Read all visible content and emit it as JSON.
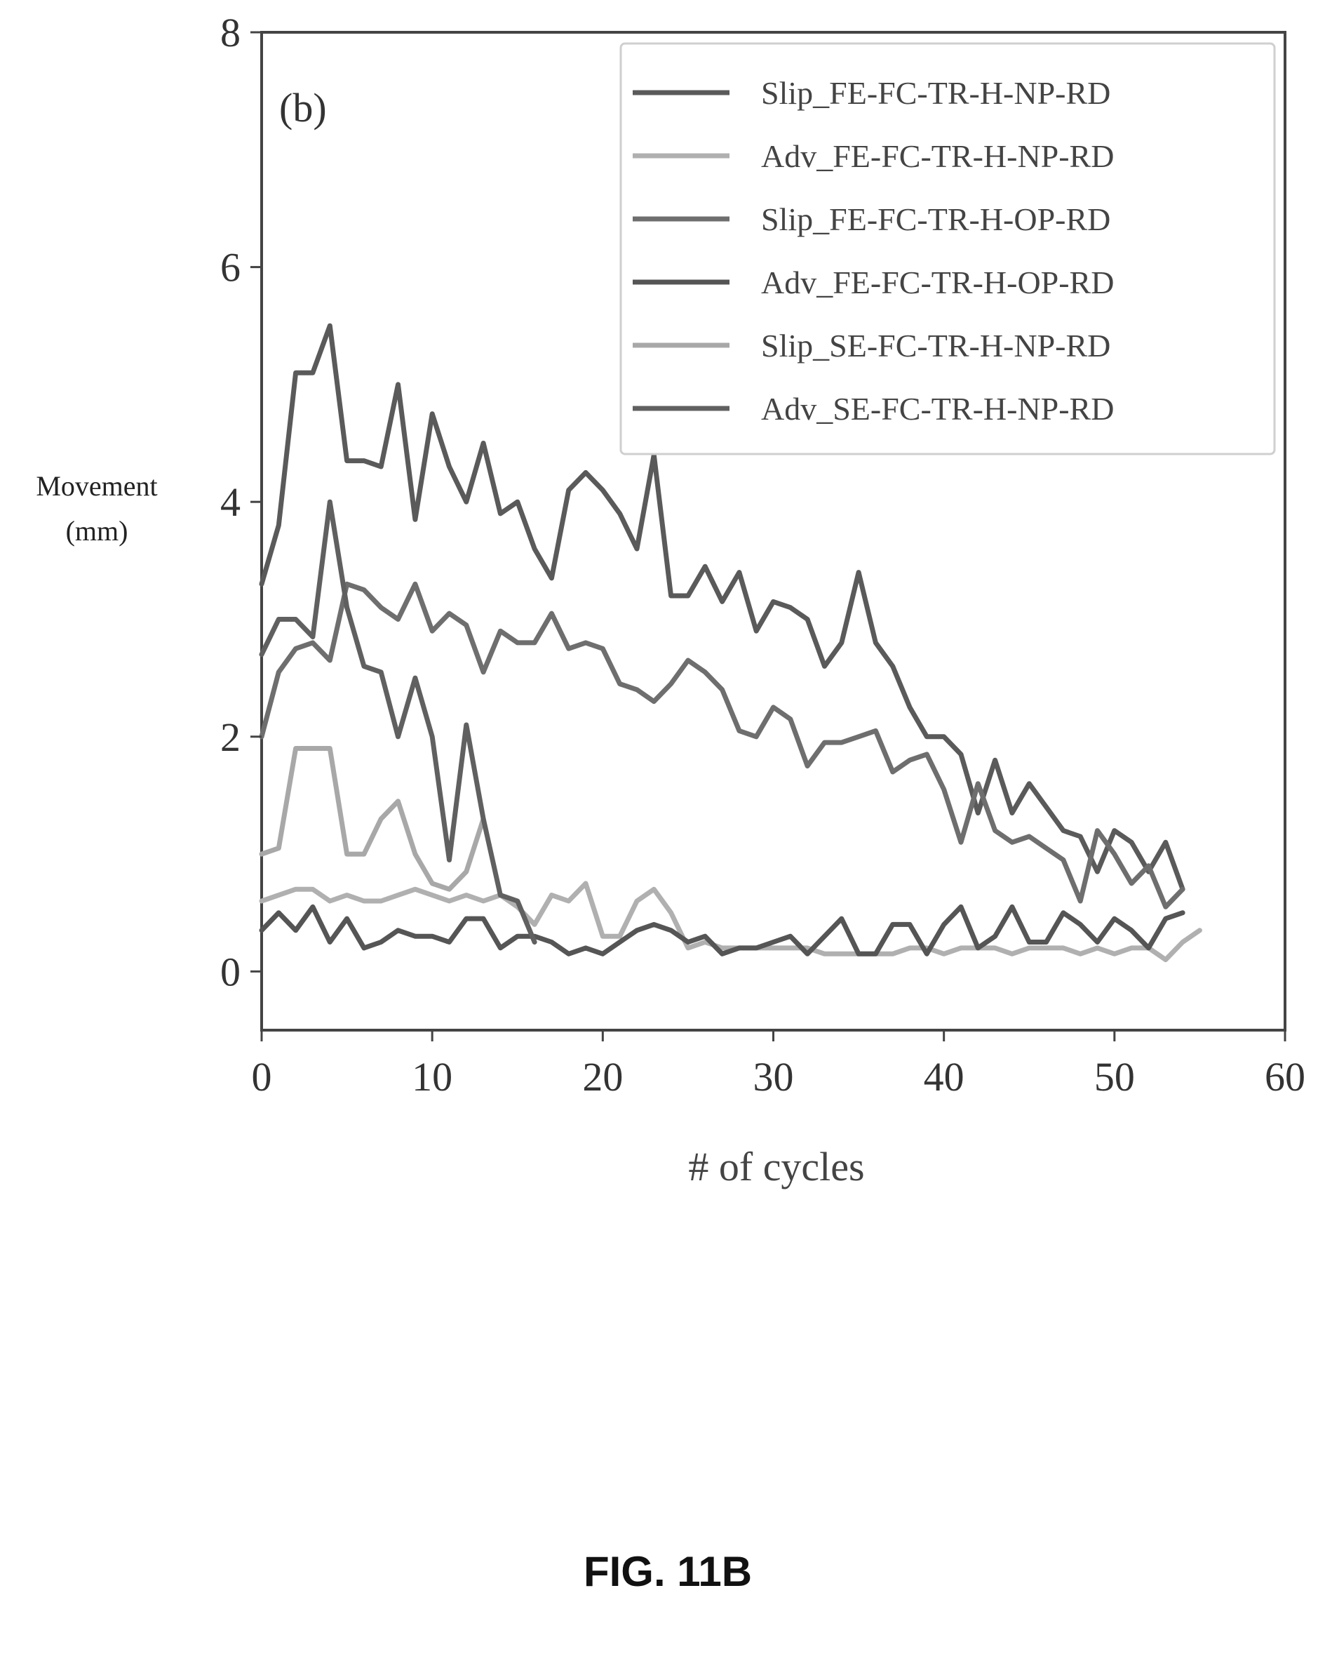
{
  "figure_caption": "FIG. 11B",
  "chart_data": {
    "type": "line",
    "panel_label": "(b)",
    "xlabel": "# of cycles",
    "ylabel_lines": [
      "Movement",
      "(mm)"
    ],
    "xlim": [
      0,
      60
    ],
    "ylim": [
      -0.5,
      8
    ],
    "xticks": [
      0,
      10,
      20,
      30,
      40,
      50,
      60
    ],
    "yticks": [
      0,
      2,
      4,
      6,
      8
    ],
    "grid": false,
    "legend_position": "top-right",
    "series": [
      {
        "name": "Slip_FE-FC-TR-H-NP-RD",
        "color": "#5a5a5a",
        "x": [
          0,
          1,
          2,
          3,
          4,
          5,
          6,
          7,
          8,
          9,
          10,
          11,
          12,
          13,
          14,
          15,
          16,
          17,
          18,
          19,
          20,
          21,
          22,
          23,
          24,
          25,
          26,
          27,
          28,
          29,
          30,
          31,
          32,
          33,
          34,
          35,
          36,
          37,
          38,
          39,
          40,
          41,
          42,
          43,
          44,
          45,
          46,
          47,
          48,
          49,
          50,
          51,
          52,
          53,
          54
        ],
        "y": [
          3.3,
          3.8,
          5.1,
          5.1,
          5.5,
          4.35,
          4.35,
          4.3,
          5.0,
          3.85,
          4.75,
          4.3,
          4.0,
          4.5,
          3.9,
          4.0,
          3.6,
          3.35,
          4.1,
          4.25,
          4.1,
          3.9,
          3.6,
          4.4,
          3.2,
          3.2,
          3.45,
          3.15,
          3.4,
          2.9,
          3.15,
          3.1,
          3.0,
          2.6,
          2.8,
          3.4,
          2.8,
          2.6,
          2.25,
          2.0,
          2.0,
          1.85,
          1.35,
          1.8,
          1.35,
          1.6,
          1.4,
          1.2,
          1.15,
          0.85,
          1.2,
          1.1,
          0.85,
          1.1,
          0.7
        ]
      },
      {
        "name": "Adv_FE-FC-TR-H-NP-RD",
        "color": "#b0b0b0",
        "x": [
          0,
          1,
          2,
          3,
          4,
          5,
          6,
          7,
          8,
          9,
          10,
          11,
          12,
          13,
          14,
          15,
          16,
          17,
          18,
          19,
          20,
          21,
          22,
          23,
          24,
          25,
          26,
          27,
          28,
          29,
          30,
          31,
          32,
          33,
          34,
          35,
          36,
          37,
          38,
          39,
          40,
          41,
          42,
          43,
          44,
          45,
          46,
          47,
          48,
          49,
          50,
          51,
          52,
          53,
          54,
          55
        ],
        "y": [
          0.6,
          0.65,
          0.7,
          0.7,
          0.6,
          0.65,
          0.6,
          0.6,
          0.65,
          0.7,
          0.65,
          0.6,
          0.65,
          0.6,
          0.65,
          0.55,
          0.4,
          0.65,
          0.6,
          0.75,
          0.3,
          0.3,
          0.6,
          0.7,
          0.5,
          0.2,
          0.25,
          0.2,
          0.2,
          0.2,
          0.2,
          0.2,
          0.2,
          0.15,
          0.15,
          0.15,
          0.15,
          0.15,
          0.2,
          0.2,
          0.15,
          0.2,
          0.2,
          0.2,
          0.15,
          0.2,
          0.2,
          0.2,
          0.15,
          0.2,
          0.15,
          0.2,
          0.2,
          0.1,
          0.25,
          0.35
        ]
      },
      {
        "name": "Slip_FE-FC-TR-H-OP-RD",
        "color": "#6e6e6e",
        "x": [
          0,
          1,
          2,
          3,
          4,
          5,
          6,
          7,
          8,
          9,
          10,
          11,
          12,
          13,
          14,
          15,
          16,
          17,
          18,
          19,
          20,
          21,
          22,
          23,
          24,
          25,
          26,
          27,
          28,
          29,
          30,
          31,
          32,
          33,
          34,
          35,
          36,
          37,
          38,
          39,
          40,
          41,
          42,
          43,
          44,
          45,
          46,
          47,
          48,
          49,
          50,
          51,
          52,
          53,
          54
        ],
        "y": [
          2.0,
          2.55,
          2.75,
          2.8,
          2.65,
          3.3,
          3.25,
          3.1,
          3.0,
          3.3,
          2.9,
          3.05,
          2.95,
          2.55,
          2.9,
          2.8,
          2.8,
          3.05,
          2.75,
          2.8,
          2.75,
          2.45,
          2.4,
          2.3,
          2.45,
          2.65,
          2.55,
          2.4,
          2.05,
          2.0,
          2.25,
          2.15,
          1.75,
          1.95,
          1.95,
          2.0,
          2.05,
          1.7,
          1.8,
          1.85,
          1.55,
          1.1,
          1.6,
          1.2,
          1.1,
          1.15,
          1.05,
          0.95,
          0.6,
          1.2,
          1.0,
          0.75,
          0.9,
          0.55,
          0.7
        ]
      },
      {
        "name": "Adv_FE-FC-TR-H-OP-RD",
        "color": "#555555",
        "x": [
          0,
          1,
          2,
          3,
          4,
          5,
          6,
          7,
          8,
          9,
          10,
          11,
          12,
          13,
          14,
          15,
          16,
          17,
          18,
          19,
          20,
          21,
          22,
          23,
          24,
          25,
          26,
          27,
          28,
          29,
          30,
          31,
          32,
          33,
          34,
          35,
          36,
          37,
          38,
          39,
          40,
          41,
          42,
          43,
          44,
          45,
          46,
          47,
          48,
          49,
          50,
          51,
          52,
          53,
          54
        ],
        "y": [
          0.35,
          0.5,
          0.35,
          0.55,
          0.25,
          0.45,
          0.2,
          0.25,
          0.35,
          0.3,
          0.3,
          0.25,
          0.45,
          0.45,
          0.2,
          0.3,
          0.3,
          0.25,
          0.15,
          0.2,
          0.15,
          0.25,
          0.35,
          0.4,
          0.35,
          0.25,
          0.3,
          0.15,
          0.2,
          0.2,
          0.25,
          0.3,
          0.15,
          0.3,
          0.45,
          0.15,
          0.15,
          0.4,
          0.4,
          0.15,
          0.4,
          0.55,
          0.2,
          0.3,
          0.55,
          0.25,
          0.25,
          0.5,
          0.4,
          0.25,
          0.45,
          0.35,
          0.2,
          0.45,
          0.5
        ]
      },
      {
        "name": "Slip_SE-FC-TR-H-NP-RD",
        "color": "#a8a8a8",
        "x": [
          0,
          1,
          2,
          3,
          4,
          5,
          6,
          7,
          8,
          9,
          10,
          11,
          12,
          13
        ],
        "y": [
          1.0,
          1.05,
          1.9,
          1.9,
          1.9,
          1.0,
          1.0,
          1.3,
          1.45,
          1.0,
          0.75,
          0.7,
          0.85,
          1.3
        ]
      },
      {
        "name": "Adv_SE-FC-TR-H-NP-RD",
        "color": "#606060",
        "x": [
          0,
          1,
          2,
          3,
          4,
          5,
          6,
          7,
          8,
          9,
          10,
          11,
          12,
          13,
          14,
          15,
          16
        ],
        "y": [
          2.7,
          3.0,
          3.0,
          2.85,
          4.0,
          3.1,
          2.6,
          2.55,
          2.0,
          2.5,
          2.0,
          0.95,
          2.1,
          1.3,
          0.65,
          0.6,
          0.25
        ]
      }
    ]
  }
}
